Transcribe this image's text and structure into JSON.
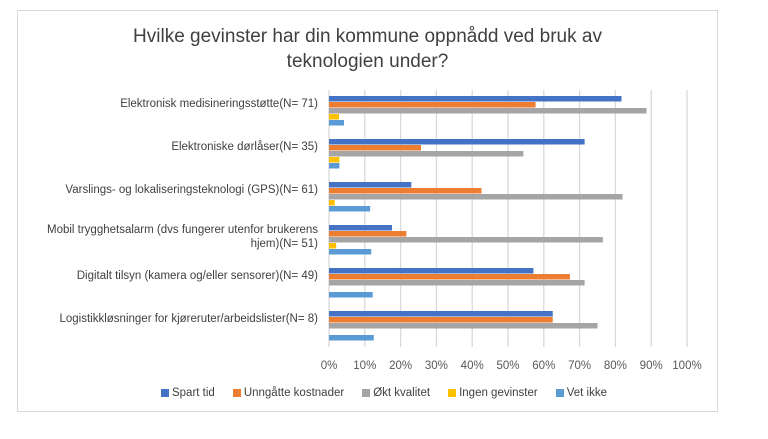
{
  "chart_data": {
    "type": "bar",
    "orientation": "horizontal",
    "title": "Hvilke gevinster har din kommune oppnådd ved bruk av teknologien under?",
    "title_lines": [
      "Hvilke gevinster har din kommune oppnådd ved bruk av",
      "teknologien under?"
    ],
    "categories": [
      "Elektronisk medisineringsstøtte(N= 71)",
      "Elektroniske dørlåser(N= 35)",
      "Varslings- og lokaliseringsteknologi (GPS)(N= 61)",
      "Mobil trygghetsalarm (dvs fungerer utenfor brukerens hjem)(N= 51)",
      "Digitalt tilsyn (kamera og/eller sensorer)(N= 49)",
      "Logistikkløsninger for kjøreruter/arbeidslister(N= 8)"
    ],
    "category_lines": [
      [
        "Elektronisk medisineringsstøtte(N= 71)"
      ],
      [
        "Elektroniske dørlåser(N= 35)"
      ],
      [
        "Varslings- og lokaliseringsteknologi (GPS)(N= 61)"
      ],
      [
        "Mobil trygghetsalarm (dvs fungerer utenfor brukerens",
        "hjem)(N= 51)"
      ],
      [
        "Digitalt tilsyn (kamera og/eller sensorer)(N= 49)"
      ],
      [
        "Logistikkløsninger for kjøreruter/arbeidslister(N= 8)"
      ]
    ],
    "series": [
      {
        "name": "Spart tid",
        "color": "#4472c4",
        "values": [
          81.7,
          71.4,
          23.0,
          17.6,
          57.1,
          62.5
        ]
      },
      {
        "name": "Unngåtte kostnader",
        "color": "#ed7d31",
        "values": [
          57.7,
          25.7,
          42.6,
          21.6,
          67.3,
          62.5
        ]
      },
      {
        "name": "Økt kvalitet",
        "color": "#a5a5a5",
        "values": [
          88.7,
          54.3,
          82.0,
          76.5,
          71.4,
          75.0
        ]
      },
      {
        "name": "Ingen gevinster",
        "color": "#ffc000",
        "values": [
          2.8,
          2.9,
          1.6,
          2.0,
          0,
          0
        ]
      },
      {
        "name": "Vet ikke",
        "color": "#5b9bd5",
        "values": [
          4.2,
          2.9,
          11.5,
          11.8,
          12.2,
          12.5
        ]
      }
    ],
    "xlim": [
      0,
      100
    ],
    "xticks": [
      "0%",
      "10%",
      "20%",
      "30%",
      "40%",
      "50%",
      "60%",
      "70%",
      "80%",
      "90%",
      "100%"
    ],
    "grid": true,
    "legend": "bottom"
  }
}
